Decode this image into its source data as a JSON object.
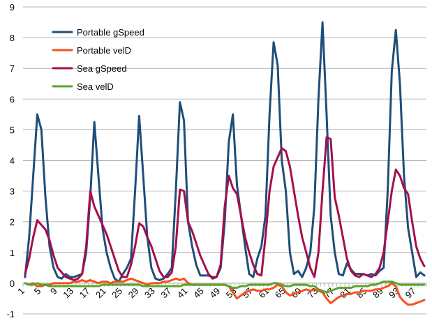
{
  "chart_data": {
    "type": "line",
    "title": "",
    "xlabel": "",
    "ylabel": "",
    "ylim": [
      -1,
      9
    ],
    "yticks": [
      -1,
      0,
      1,
      2,
      3,
      4,
      5,
      6,
      7,
      8,
      9
    ],
    "x": [
      1,
      2,
      3,
      4,
      5,
      6,
      7,
      8,
      9,
      10,
      11,
      12,
      13,
      14,
      15,
      16,
      17,
      18,
      19,
      20,
      21,
      22,
      23,
      24,
      25,
      26,
      27,
      28,
      29,
      30,
      31,
      32,
      33,
      34,
      35,
      36,
      37,
      38,
      39,
      40,
      41,
      42,
      43,
      44,
      45,
      46,
      47,
      48,
      49,
      50,
      51,
      52,
      53,
      54,
      55,
      56,
      57,
      58,
      59,
      60,
      61,
      62,
      63,
      64,
      65,
      66,
      67,
      68,
      69,
      70,
      71,
      72,
      73,
      74,
      75,
      76,
      77,
      78,
      79,
      80,
      81,
      82,
      83,
      84,
      85,
      86,
      87,
      88,
      89,
      90,
      91,
      92,
      93,
      94,
      95,
      96,
      97,
      98,
      99
    ],
    "xtick_labels": [
      "1",
      "5",
      "9",
      "13",
      "17",
      "21",
      "25",
      "29",
      "33",
      "37",
      "41",
      "45",
      "49",
      "53",
      "57",
      "61",
      "65",
      "69",
      "73",
      "77",
      "81",
      "85",
      "89",
      "93",
      "97"
    ],
    "legend_position": "top-left",
    "grid": true,
    "series": [
      {
        "name": "Portable gSpeed",
        "color": "#1f4e79",
        "values": [
          0.2,
          1.5,
          3.5,
          5.5,
          5.0,
          2.8,
          1.2,
          0.5,
          0.2,
          0.15,
          0.3,
          0.2,
          0.2,
          0.25,
          0.3,
          1.0,
          2.8,
          5.25,
          3.5,
          1.8,
          1.0,
          0.5,
          0.15,
          0.05,
          0.3,
          0.5,
          0.8,
          3.0,
          5.45,
          3.5,
          1.5,
          0.5,
          0.15,
          0.1,
          0.15,
          0.3,
          0.5,
          3.0,
          5.9,
          5.3,
          2.0,
          1.2,
          0.6,
          0.25,
          0.25,
          0.25,
          0.2,
          0.2,
          0.5,
          2.0,
          4.6,
          5.5,
          3.2,
          2.2,
          1.2,
          0.3,
          0.2,
          0.8,
          1.2,
          2.2,
          5.5,
          7.85,
          7.1,
          4.0,
          3.0,
          1.0,
          0.3,
          0.4,
          0.2,
          0.5,
          1.0,
          2.5,
          6.0,
          8.5,
          5.5,
          2.2,
          1.0,
          0.3,
          0.25,
          0.65,
          0.45,
          0.3,
          0.3,
          0.3,
          0.25,
          0.3,
          0.25,
          0.4,
          0.5,
          3.0,
          6.9,
          8.25,
          6.5,
          3.5,
          1.8,
          1.0,
          0.2,
          0.35,
          0.25
        ]
      },
      {
        "name": "Portable velD",
        "color": "#f4511e",
        "values": [
          0.0,
          -0.05,
          0.0,
          -0.1,
          -0.1,
          -0.05,
          -0.05,
          0.0,
          0.0,
          0.0,
          0.0,
          0.0,
          0.05,
          0.05,
          0.1,
          0.05,
          0.1,
          0.05,
          0.0,
          0.05,
          0.05,
          0.0,
          0.05,
          0.05,
          0.05,
          0.1,
          0.15,
          0.1,
          0.05,
          0.0,
          -0.05,
          0.0,
          0.0,
          0.0,
          0.05,
          0.05,
          0.1,
          0.15,
          0.1,
          0.15,
          0.0,
          -0.05,
          -0.05,
          -0.05,
          -0.05,
          -0.05,
          -0.05,
          -0.05,
          -0.05,
          -0.05,
          -0.1,
          -0.3,
          -0.5,
          -0.4,
          -0.3,
          -0.25,
          -0.2,
          -0.25,
          -0.25,
          -0.2,
          -0.2,
          -0.15,
          -0.05,
          -0.1,
          -0.3,
          -0.4,
          -0.35,
          -0.3,
          -0.25,
          -0.2,
          -0.25,
          -0.2,
          -0.25,
          -0.3,
          -0.5,
          -0.65,
          -0.55,
          -0.45,
          -0.4,
          -0.35,
          -0.35,
          -0.3,
          -0.3,
          -0.25,
          -0.25,
          -0.25,
          -0.2,
          -0.2,
          -0.15,
          -0.1,
          0.0,
          -0.1,
          -0.45,
          -0.6,
          -0.7,
          -0.7,
          -0.65,
          -0.6,
          -0.55
        ]
      },
      {
        "name": "Sea gSpeed",
        "color": "#a50f4b",
        "values": [
          0.3,
          0.8,
          1.5,
          2.05,
          1.9,
          1.75,
          1.4,
          0.9,
          0.5,
          0.35,
          0.2,
          0.15,
          0.1,
          0.15,
          0.3,
          1.2,
          3.0,
          2.5,
          2.2,
          1.9,
          1.6,
          1.2,
          0.8,
          0.4,
          0.2,
          0.2,
          0.6,
          1.2,
          1.95,
          1.85,
          1.5,
          1.2,
          0.8,
          0.4,
          0.2,
          0.2,
          0.35,
          1.2,
          3.05,
          3.0,
          2.0,
          1.7,
          1.3,
          0.9,
          0.6,
          0.3,
          0.15,
          0.2,
          0.6,
          2.5,
          3.5,
          3.1,
          2.9,
          2.2,
          1.5,
          1.0,
          0.6,
          0.3,
          0.25,
          1.5,
          3.0,
          3.8,
          4.1,
          4.4,
          4.3,
          3.8,
          3.0,
          2.2,
          1.5,
          1.0,
          0.5,
          0.2,
          1.0,
          3.0,
          4.75,
          4.7,
          2.8,
          2.2,
          1.5,
          0.8,
          0.4,
          0.25,
          0.2,
          0.3,
          0.25,
          0.2,
          0.3,
          0.5,
          1.0,
          2.0,
          3.0,
          3.7,
          3.5,
          3.1,
          2.9,
          2.0,
          1.2,
          0.8,
          0.55
        ]
      },
      {
        "name": "Sea velD",
        "color": "#59a52c",
        "values": [
          0.0,
          -0.05,
          -0.05,
          0.0,
          -0.05,
          -0.05,
          -0.1,
          -0.1,
          -0.1,
          -0.1,
          -0.1,
          -0.1,
          -0.1,
          -0.1,
          -0.1,
          -0.1,
          -0.1,
          -0.1,
          -0.1,
          -0.05,
          -0.05,
          -0.05,
          -0.05,
          -0.05,
          -0.05,
          -0.05,
          -0.05,
          -0.05,
          -0.05,
          -0.1,
          -0.1,
          -0.1,
          -0.1,
          -0.1,
          -0.1,
          -0.1,
          -0.1,
          -0.1,
          -0.1,
          -0.05,
          -0.05,
          -0.05,
          -0.05,
          -0.05,
          -0.05,
          -0.05,
          -0.05,
          -0.05,
          -0.05,
          -0.05,
          -0.1,
          -0.15,
          -0.15,
          -0.1,
          -0.1,
          -0.05,
          -0.05,
          -0.05,
          -0.05,
          -0.05,
          -0.05,
          0.0,
          0.0,
          -0.05,
          -0.1,
          -0.1,
          -0.05,
          -0.05,
          -0.05,
          -0.05,
          -0.1,
          -0.1,
          -0.2,
          -0.25,
          -0.3,
          -0.25,
          -0.2,
          -0.15,
          -0.15,
          -0.15,
          -0.15,
          -0.1,
          -0.1,
          -0.1,
          -0.1,
          -0.05,
          -0.05,
          0.0,
          0.05,
          0.05,
          0.05,
          0.0,
          -0.05,
          -0.05,
          -0.05,
          -0.05,
          -0.05,
          -0.05,
          -0.05
        ]
      }
    ]
  }
}
